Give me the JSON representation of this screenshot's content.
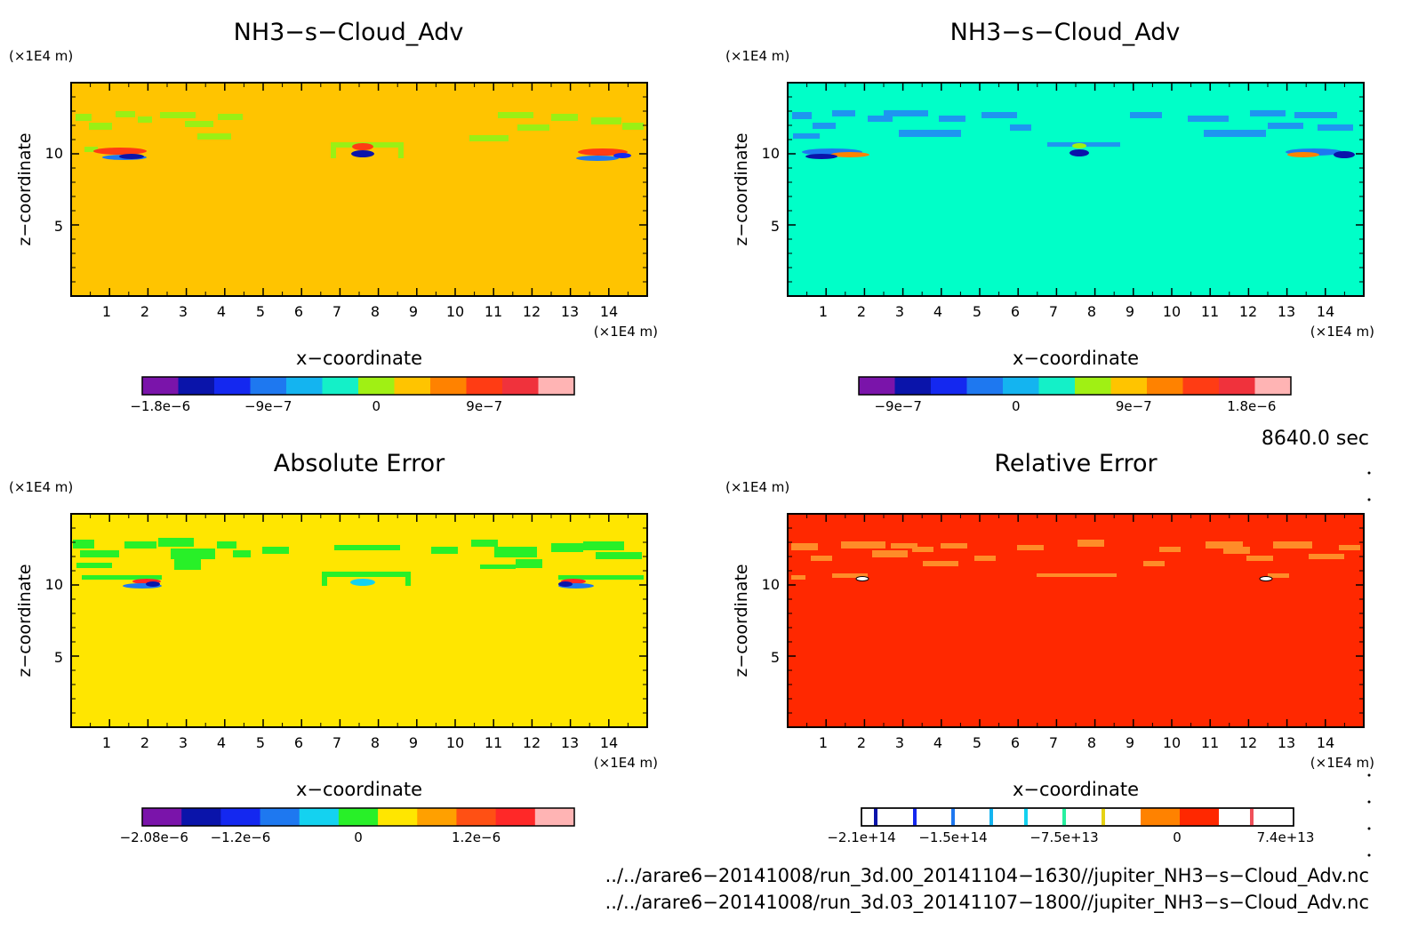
{
  "chart_data": [
    {
      "type": "heatmap",
      "title": "NH3−s−Cloud_Adv",
      "xlabel": "x−coordinate",
      "ylabel": "z−coordinate",
      "xunit": "(×1E4 m)",
      "yunit": "(×1E4 m)",
      "xlim": [
        0,
        15
      ],
      "ylim": [
        0,
        15
      ],
      "xticks": [
        "1",
        "2",
        "3",
        "4",
        "5",
        "6",
        "7",
        "8",
        "9",
        "10",
        "11",
        "12",
        "13",
        "14"
      ],
      "yticks": [
        "5",
        "10"
      ],
      "background_color": "#ffc400",
      "colorbar": {
        "range": [
          -1.95e-06,
          1.65e-06
        ],
        "ticks": [
          {
            "v": -1.8e-06,
            "label": "−1.8e−6"
          },
          {
            "v": -9e-07,
            "label": "−9e−7"
          },
          {
            "v": 0,
            "label": "0"
          },
          {
            "v": 9e-07,
            "label": "9e−7"
          }
        ],
        "colors": [
          "#7a14aa",
          "#0a14aa",
          "#1428f0",
          "#1e78f0",
          "#14b4f0",
          "#14f0c8",
          "#a0f014",
          "#ffc400",
          "#ff8200",
          "#ff3c14",
          "#f0323c",
          "#ffb4b4"
        ]
      }
    },
    {
      "type": "heatmap",
      "title": "NH3−s−Cloud_Adv",
      "xlabel": "x−coordinate",
      "ylabel": "z−coordinate",
      "xunit": "(×1E4 m)",
      "yunit": "(×1E4 m)",
      "xlim": [
        0,
        15
      ],
      "ylim": [
        0,
        15
      ],
      "xticks": [
        "1",
        "2",
        "3",
        "4",
        "5",
        "6",
        "7",
        "8",
        "9",
        "10",
        "11",
        "12",
        "13",
        "14"
      ],
      "yticks": [
        "5",
        "10"
      ],
      "background_color": "#00ffc8",
      "colorbar": {
        "range": [
          -1.2e-06,
          2.1e-06
        ],
        "ticks": [
          {
            "v": -9e-07,
            "label": "−9e−7"
          },
          {
            "v": 0,
            "label": "0"
          },
          {
            "v": 9e-07,
            "label": "9e−7"
          },
          {
            "v": 1.8e-06,
            "label": "1.8e−6"
          }
        ],
        "colors": [
          "#7a14aa",
          "#0a14aa",
          "#1428f0",
          "#1e78f0",
          "#14b4f0",
          "#14f0c8",
          "#a0f014",
          "#ffc400",
          "#ff8200",
          "#ff3c14",
          "#f0323c",
          "#ffb4b4"
        ]
      }
    },
    {
      "type": "heatmap",
      "title": "Absolute Error",
      "xlabel": "x−coordinate",
      "ylabel": "z−coordinate",
      "xunit": "(×1E4 m)",
      "yunit": "(×1E4 m)",
      "xlim": [
        0,
        15
      ],
      "ylim": [
        0,
        15
      ],
      "xticks": [
        "1",
        "2",
        "3",
        "4",
        "5",
        "6",
        "7",
        "8",
        "9",
        "10",
        "11",
        "12",
        "13",
        "14"
      ],
      "yticks": [
        "5",
        "10"
      ],
      "background_color": "#ffe600",
      "colorbar": {
        "range": [
          -2.2e-06,
          2.2e-06
        ],
        "ticks": [
          {
            "v": -2.08e-06,
            "label": "−2.08e−6"
          },
          {
            "v": -1.2e-06,
            "label": "−1.2e−6"
          },
          {
            "v": 0,
            "label": "0"
          },
          {
            "v": 1.2e-06,
            "label": "1.2e−6"
          }
        ],
        "colors": [
          "#7a14aa",
          "#0a14aa",
          "#1428f0",
          "#1e78f0",
          "#14d2f0",
          "#28f028",
          "#ffe600",
          "#ffa000",
          "#ff5014",
          "#ff2828",
          "#ffb4b4"
        ]
      }
    },
    {
      "type": "heatmap",
      "title": "Relative Error",
      "xlabel": "x−coordinate",
      "ylabel": "z−coordinate",
      "xunit": "(×1E4 m)",
      "yunit": "(×1E4 m)",
      "xlim": [
        0,
        15
      ],
      "ylim": [
        0,
        15
      ],
      "xticks": [
        "1",
        "2",
        "3",
        "4",
        "5",
        "6",
        "7",
        "8",
        "9",
        "10",
        "11",
        "12",
        "13",
        "14"
      ],
      "yticks": [
        "5",
        "10"
      ],
      "background_color": "#ff2800",
      "colorbar": {
        "range": [
          -235000000000000.0,
          115000000000000.0
        ],
        "ticks": [
          {
            "v": -210000000000000.0,
            "label": "−2.1e+14"
          },
          {
            "v": -150000000000000.0,
            "label": "−1.5e+14"
          },
          {
            "v": -75000000000000.0,
            "label": "−7.5e+13"
          },
          {
            "v": 0,
            "label": "0"
          },
          {
            "v": 74000000000000.0,
            "label": "7.4e+13"
          }
        ]
      }
    }
  ],
  "time_label": "8640.0 sec",
  "footer": {
    "file1": "../../arare6−20141008/run_3d.00_20141104−1630//jupiter_NH3−s−Cloud_Adv.nc",
    "file2": "../../arare6−20141008/run_3d.03_20141107−1800//jupiter_NH3−s−Cloud_Adv.nc"
  },
  "colors": {
    "green": "#9af014",
    "blue_patch": "#1e78f0",
    "abs_green": "#28f028",
    "rel_orange": "#ff8c28"
  }
}
